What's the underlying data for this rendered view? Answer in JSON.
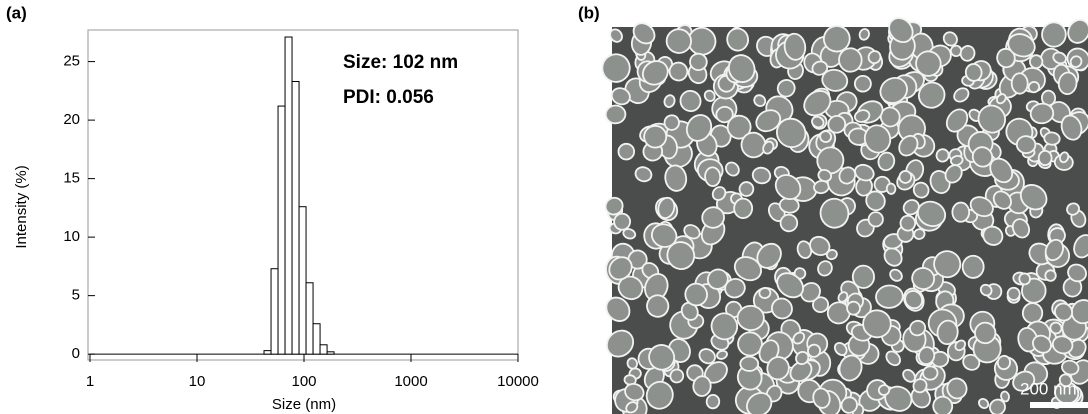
{
  "chart_data": {
    "type": "histogram",
    "panel_label": "(a)",
    "annotations": [
      "Size: 102 nm",
      "PDI: 0.056"
    ],
    "x_label": "Size (nm)",
    "y_label": "Intensity (%)",
    "bins": [
      42.3,
      49.2,
      57.2,
      66.5,
      77.3,
      89.9,
      104.5,
      121.5,
      141.3,
      164.3,
      191
    ],
    "values": [
      0.3,
      7.3,
      21.2,
      27.1,
      23.3,
      12.6,
      6.1,
      2.6,
      0.8,
      0.2
    ],
    "color": "#ffffff",
    "log_x": true,
    "xlim": [
      1,
      10000
    ],
    "xticks": [
      1,
      10,
      100,
      1000,
      10000
    ],
    "ylim": [
      -0.5,
      27.7
    ],
    "yticks": [
      0,
      5,
      10,
      15,
      20,
      25
    ]
  },
  "image": {
    "panel_label": "(b)",
    "scale_bar": "200 nm"
  }
}
